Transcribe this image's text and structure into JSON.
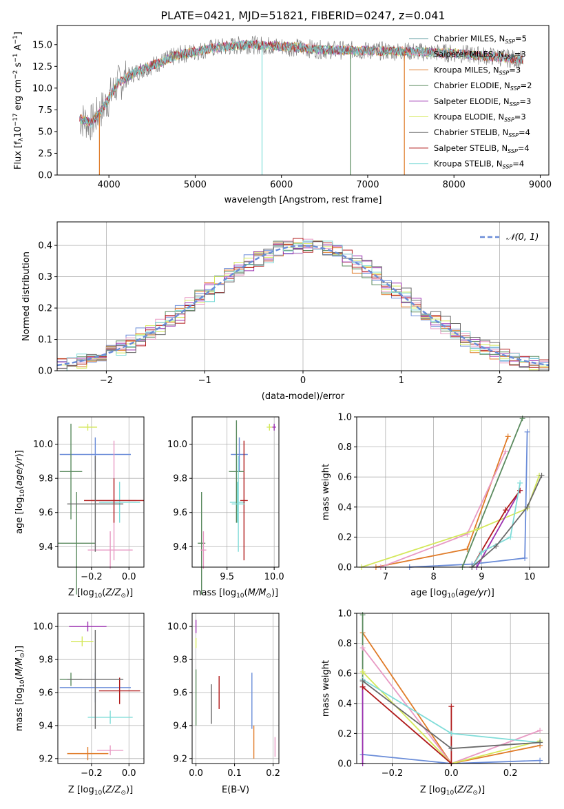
{
  "colors": {
    "series": [
      "#5f9ea0",
      "#e89ac4",
      "#e07b28",
      "#5a8a5e",
      "#9b30b0",
      "#d4e85a",
      "#6a6a6a",
      "#b01a1a",
      "#7fdcd8"
    ],
    "model": [
      "#6a8cd8",
      "#e07b28",
      "#5a8a5e",
      "#e89ac4",
      "#d4e85a",
      "#9b30b0",
      "#b01a1a",
      "#7fdcd8",
      "#6a6a6a"
    ],
    "normal": "#6a8cd8"
  },
  "chart_data": [
    {
      "type": "line",
      "title": "PLATE=0421, MJD=51821, FIBERID=0247, z=0.041",
      "xlabel": "wavelength [Angstrom, rest frame]",
      "ylabel": "Flux [fλ10⁻¹⁷ erg cm⁻² s⁻¹ A⁻¹]",
      "xlim": [
        3400,
        9100
      ],
      "ylim": [
        0,
        17.2
      ],
      "xticks": [
        4000,
        5000,
        6000,
        7000,
        8000,
        9000
      ],
      "yticks": [
        0.0,
        2.5,
        5.0,
        7.5,
        10.0,
        12.5,
        15.0
      ],
      "legend_loc": "upper right",
      "continuum": [
        [
          3650,
          6.5
        ],
        [
          3800,
          6.0
        ],
        [
          3950,
          8.0
        ],
        [
          4100,
          10.5
        ],
        [
          4300,
          11.8
        ],
        [
          4500,
          12.6
        ],
        [
          4800,
          13.8
        ],
        [
          5200,
          14.6
        ],
        [
          5600,
          15.0
        ],
        [
          6000,
          14.8
        ],
        [
          6500,
          14.4
        ],
        [
          7000,
          14.3
        ],
        [
          7500,
          14.2
        ],
        [
          8000,
          14.0
        ],
        [
          8500,
          13.6
        ],
        [
          8800,
          13.2
        ]
      ],
      "series": [
        {
          "name": "Chabrier MILES, N$_{SSP}$=5",
          "color_index": 0
        },
        {
          "name": "Salpeter MILES, N$_{SSP}$=3",
          "color_index": 1
        },
        {
          "name": "Kroupa MILES, N$_{SSP}$=3",
          "color_index": 2
        },
        {
          "name": "Chabrier ELODIE, N$_{SSP}$=2",
          "color_index": 3
        },
        {
          "name": "Salpeter ELODIE, N$_{SSP}$=3",
          "color_index": 4
        },
        {
          "name": "Kroupa ELODIE, N$_{SSP}$=3",
          "color_index": 5
        },
        {
          "name": "Chabrier STELIB, N$_{SSP}$=4",
          "color_index": 6
        },
        {
          "name": "Salpeter STELIB, N$_{SSP}$=4",
          "color_index": 7
        },
        {
          "name": "Kroupa STELIB, N$_{SSP}$=4",
          "color_index": 8
        }
      ],
      "legend": [
        {
          "main": "Chabrier MILES, N",
          "sub": "SSP",
          "tail": "=5"
        },
        {
          "main": "Salpeter MILES, N",
          "sub": "SSP",
          "tail": "=3"
        },
        {
          "main": "Kroupa MILES, N",
          "sub": "SSP",
          "tail": "=3"
        },
        {
          "main": "Chabrier ELODIE, N",
          "sub": "SSP",
          "tail": "=2"
        },
        {
          "main": "Salpeter ELODIE, N",
          "sub": "SSP",
          "tail": "=3"
        },
        {
          "main": "Kroupa ELODIE, N",
          "sub": "SSP",
          "tail": "=3"
        },
        {
          "main": "Chabrier STELIB, N",
          "sub": "SSP",
          "tail": "=4"
        },
        {
          "main": "Salpeter STELIB, N",
          "sub": "SSP",
          "tail": "=4"
        },
        {
          "main": "Kroupa STELIB, N",
          "sub": "SSP",
          "tail": "=4"
        }
      ]
    },
    {
      "type": "histogram",
      "xlabel": "(data-model)/error",
      "ylabel": "Normed distribution",
      "xlim": [
        -2.5,
        2.5
      ],
      "ylim": [
        0,
        0.475
      ],
      "xticks": [
        -2,
        -1,
        0,
        1,
        2
      ],
      "yticks": [
        0.0,
        0.1,
        0.2,
        0.3,
        0.4
      ],
      "grid": true,
      "legend": [
        {
          "name": "N(0,1)",
          "style": "dashed"
        }
      ],
      "legend_loc": "upper right",
      "bin_width": 0.1
    },
    {
      "type": "errorbar",
      "xlabel": "Z [log10(Z/Z☉)]",
      "ylabel": "age  [log10(age/yr)]",
      "xlim": [
        -0.38,
        0.08
      ],
      "ylim": [
        9.28,
        10.16
      ],
      "xticks": [
        -0.2,
        0.0
      ],
      "yticks": [
        9.4,
        9.6,
        9.8,
        10.0
      ],
      "points": [
        {
          "x": -0.18,
          "xerr": 0.19,
          "y": 9.94,
          "yerr": 0.1,
          "c": 0
        },
        {
          "x": -0.05,
          "xerr": 0.11,
          "y": 9.66,
          "yerr": 0.12,
          "c": 7
        },
        {
          "x": -0.28,
          "xerr": 0.1,
          "y": 9.42,
          "yerr": 0.3,
          "c": 2
        },
        {
          "x": -0.08,
          "xerr": 0.12,
          "y": 9.67,
          "yerr": 0.35,
          "c": 3
        },
        {
          "x": -0.1,
          "xerr": 0.12,
          "y": 9.38,
          "yerr": 0.11,
          "c": 3
        },
        {
          "x": -0.22,
          "xerr": 0.05,
          "y": 10.1,
          "yerr": 0.02,
          "c": 4
        },
        {
          "x": -0.31,
          "xerr": 0.06,
          "y": 9.84,
          "yerr": 0.28,
          "c": 2
        },
        {
          "x": -0.08,
          "xerr": 0.16,
          "y": 9.67,
          "yerr": 0.13,
          "c": 6
        },
        {
          "x": -0.18,
          "xerr": 0.15,
          "y": 9.65,
          "yerr": 0.28,
          "c": 8
        }
      ]
    },
    {
      "type": "errorbar",
      "xlabel": "mass [log10(M/M☉)]",
      "ylabel": "",
      "xlim": [
        9.13,
        10.05
      ],
      "ylim": [
        9.28,
        10.16
      ],
      "xticks": [
        9.5,
        10.0
      ],
      "yticks": [
        9.4,
        9.6,
        9.8,
        10.0
      ],
      "points": [
        {
          "x": 9.63,
          "xerr": 0.09,
          "y": 9.94,
          "yerr": 0.1,
          "c": 0
        },
        {
          "x": 9.61,
          "xerr": 0.08,
          "y": 9.66,
          "yerr": 0.12,
          "c": 7
        },
        {
          "x": 9.23,
          "xerr": 0.04,
          "y": 9.42,
          "yerr": 0.3,
          "c": 2
        },
        {
          "x": 9.68,
          "xerr": 0.04,
          "y": 9.67,
          "yerr": 0.35,
          "c": 6
        },
        {
          "x": 9.25,
          "xerr": 0.03,
          "y": 9.38,
          "yerr": 0.11,
          "c": 3
        },
        {
          "x": 9.95,
          "xerr": 0.03,
          "y": 10.1,
          "yerr": 0.02,
          "c": 4
        },
        {
          "x": 10.0,
          "xerr": 0.02,
          "y": 10.1,
          "yerr": 0.02,
          "c": 5
        },
        {
          "x": 9.6,
          "xerr": 0.08,
          "y": 9.84,
          "yerr": 0.3,
          "c": 2
        },
        {
          "x": 9.62,
          "xerr": 0.07,
          "y": 9.65,
          "yerr": 0.28,
          "c": 7
        }
      ]
    },
    {
      "type": "line",
      "xlabel": "age  [log10(age/yr)]",
      "ylabel": "mass weight",
      "xlim": [
        6.4,
        10.4
      ],
      "ylim": [
        0,
        1.0
      ],
      "xticks": [
        7,
        8,
        9,
        10
      ],
      "yticks": [
        0.0,
        0.2,
        0.4,
        0.6,
        0.8,
        1.0
      ],
      "grid": true,
      "series": [
        {
          "c": 0,
          "x": [
            7.5,
            8.8,
            9.9,
            9.95
          ],
          "y": [
            0.0,
            0.02,
            0.06,
            0.9
          ]
        },
        {
          "c": 1,
          "x": [
            6.8,
            8.7,
            9.55
          ],
          "y": [
            0.0,
            0.12,
            0.87
          ]
        },
        {
          "c": 2,
          "x": [
            8.6,
            9.85
          ],
          "y": [
            0.0,
            0.99
          ]
        },
        {
          "c": 3,
          "x": [
            6.9,
            8.7,
            9.5
          ],
          "y": [
            0.0,
            0.22,
            0.77
          ]
        },
        {
          "c": 4,
          "x": [
            6.5,
            8.9,
            9.95,
            10.2
          ],
          "y": [
            0.0,
            0.25,
            0.39,
            0.61
          ]
        },
        {
          "c": 5,
          "x": [
            8.9,
            9.8
          ],
          "y": [
            0.0,
            0.51
          ]
        },
        {
          "c": 6,
          "x": [
            8.8,
            9.5,
            9.8
          ],
          "y": [
            0.0,
            0.38,
            0.51
          ]
        },
        {
          "c": 7,
          "x": [
            8.8,
            9.0,
            9.6,
            9.8
          ],
          "y": [
            0.0,
            0.1,
            0.2,
            0.56
          ]
        },
        {
          "c": 8,
          "x": [
            8.8,
            9.3,
            9.95,
            10.25
          ],
          "y": [
            0.0,
            0.14,
            0.4,
            0.61
          ]
        }
      ]
    },
    {
      "type": "errorbar",
      "xlabel": "Z [log10(Z/Z☉)]",
      "ylabel": "mass [log10(M/M☉)]",
      "xlim": [
        -0.38,
        0.08
      ],
      "ylim": [
        9.17,
        10.08
      ],
      "xticks": [
        -0.2,
        0.0
      ],
      "yticks": [
        9.2,
        9.4,
        9.6,
        9.8,
        10.0
      ],
      "points": [
        {
          "x": -0.18,
          "xerr": 0.19,
          "y": 9.63,
          "yerr": 0.09,
          "c": 0
        },
        {
          "x": -0.05,
          "xerr": 0.11,
          "y": 9.61,
          "yerr": 0.08,
          "c": 6
        },
        {
          "x": -0.22,
          "xerr": 0.11,
          "y": 9.23,
          "yerr": 0.04,
          "c": 1
        },
        {
          "x": -0.1,
          "xerr": 0.12,
          "y": 9.45,
          "yerr": 0.04,
          "c": 7
        },
        {
          "x": -0.1,
          "xerr": 0.07,
          "y": 9.25,
          "yerr": 0.03,
          "c": 3
        },
        {
          "x": -0.22,
          "xerr": 0.1,
          "y": 10.0,
          "yerr": 0.03,
          "c": 5
        },
        {
          "x": -0.25,
          "xerr": 0.06,
          "y": 9.91,
          "yerr": 0.03,
          "c": 4
        },
        {
          "x": -0.31,
          "xerr": 0.06,
          "y": 9.68,
          "yerr": 0.04,
          "c": 2
        },
        {
          "x": -0.18,
          "xerr": 0.15,
          "y": 9.68,
          "yerr": 0.3,
          "c": 8
        }
      ]
    },
    {
      "type": "errorbar",
      "xlabel": "E(B-V)",
      "ylabel": "",
      "xlim": [
        -0.01,
        0.215
      ],
      "ylim": [
        9.17,
        10.08
      ],
      "xticks": [
        0.0,
        0.1,
        0.2
      ],
      "yticks": [
        9.2,
        9.4,
        9.6,
        9.8,
        10.0
      ],
      "points": [
        {
          "x": 0.0,
          "xerr": 0.0,
          "y": 10.0,
          "yerr": 0.04,
          "c": 5
        },
        {
          "x": 0.0,
          "xerr": 0.0,
          "y": 9.9,
          "yerr": 0.03,
          "c": 4
        },
        {
          "x": 0.0,
          "xerr": 0.0,
          "y": 9.57,
          "yerr": 0.17,
          "c": 2
        },
        {
          "x": 0.04,
          "xerr": 0.0,
          "y": 9.53,
          "yerr": 0.12,
          "c": 8
        },
        {
          "x": 0.06,
          "xerr": 0.0,
          "y": 9.6,
          "yerr": 0.1,
          "c": 6
        },
        {
          "x": 0.145,
          "xerr": 0.0,
          "y": 9.55,
          "yerr": 0.17,
          "c": 0
        },
        {
          "x": 0.15,
          "xerr": 0.0,
          "y": 9.3,
          "yerr": 0.1,
          "c": 1
        },
        {
          "x": 0.205,
          "xerr": 0.0,
          "y": 9.27,
          "yerr": 0.06,
          "c": 3
        }
      ]
    },
    {
      "type": "line",
      "xlabel": "Z [log10(Z/Z☉)]",
      "ylabel": "mass weight",
      "xlim": [
        -0.32,
        0.33
      ],
      "ylim": [
        0,
        1.0
      ],
      "xticks": [
        -0.2,
        0.0,
        0.2
      ],
      "yticks": [
        0.0,
        0.2,
        0.4,
        0.6,
        0.8,
        1.0
      ],
      "grid": true,
      "series": [
        {
          "c": 0,
          "x": [
            -0.3,
            0.0,
            0.3
          ],
          "y": [
            0.06,
            0.0,
            0.02
          ]
        },
        {
          "c": 1,
          "x": [
            -0.3,
            0.0,
            0.3
          ],
          "y": [
            0.87,
            0.0,
            0.12
          ]
        },
        {
          "c": 2,
          "x": [
            -0.3,
            -0.3
          ],
          "y": [
            0.0,
            0.99
          ]
        },
        {
          "c": 3,
          "x": [
            -0.3,
            0.0,
            0.3
          ],
          "y": [
            0.77,
            0.0,
            0.22
          ]
        },
        {
          "c": 4,
          "x": [
            -0.3,
            0.0,
            0.3
          ],
          "y": [
            0.61,
            0.0,
            0.15
          ]
        },
        {
          "c": 5,
          "x": [
            -0.3,
            -0.3
          ],
          "y": [
            0.0,
            0.51
          ]
        },
        {
          "c": 6,
          "x": [
            -0.3,
            0.0,
            0.0
          ],
          "y": [
            0.51,
            0.0,
            0.38
          ]
        },
        {
          "c": 7,
          "x": [
            -0.3,
            0.0,
            0.3
          ],
          "y": [
            0.56,
            0.2,
            0.14
          ]
        },
        {
          "c": 8,
          "x": [
            -0.3,
            0.0,
            0.3
          ],
          "y": [
            0.55,
            0.1,
            0.14
          ]
        }
      ]
    }
  ]
}
